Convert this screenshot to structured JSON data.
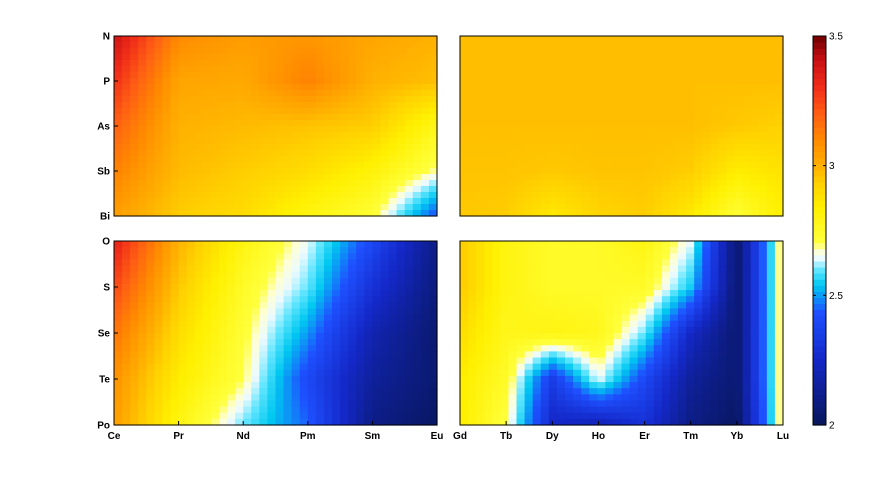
{
  "chart_data": [
    {
      "type": "heatmap",
      "x_categories": [
        "Ce",
        "Pr",
        "Nd",
        "Pm",
        "Sm",
        "Eu"
      ],
      "y_categories": [
        "N",
        "P",
        "As",
        "Sb",
        "Bi"
      ],
      "values": [
        [
          3.4,
          3.1,
          3.05,
          3.07,
          3.03,
          3.0
        ],
        [
          3.3,
          3.03,
          3.02,
          3.12,
          3.0,
          2.97
        ],
        [
          3.2,
          3.0,
          2.98,
          2.96,
          2.94,
          2.78
        ],
        [
          3.12,
          2.98,
          2.94,
          2.9,
          2.82,
          2.68
        ],
        [
          3.05,
          2.94,
          2.9,
          2.8,
          2.72,
          2.42
        ]
      ]
    },
    {
      "type": "heatmap",
      "x_categories": [
        "Gd",
        "Tb",
        "Dy",
        "Ho",
        "Er",
        "Tm",
        "Yb",
        "Lu"
      ],
      "y_categories": [
        "N",
        "P",
        "As",
        "Sb",
        "Bi"
      ],
      "values": [
        [
          2.97,
          2.97,
          2.97,
          2.97,
          2.97,
          2.97,
          2.97,
          2.97
        ],
        [
          2.97,
          2.97,
          2.97,
          2.97,
          2.97,
          2.97,
          2.97,
          2.97
        ],
        [
          2.97,
          2.97,
          2.97,
          2.97,
          2.97,
          2.97,
          2.95,
          2.93
        ],
        [
          2.96,
          2.96,
          2.95,
          2.96,
          2.96,
          2.94,
          2.85,
          2.88
        ],
        [
          2.95,
          2.94,
          2.86,
          2.92,
          2.94,
          2.86,
          2.72,
          2.84
        ]
      ]
    },
    {
      "type": "heatmap",
      "x_categories": [
        "Ce",
        "Pr",
        "Nd",
        "Pm",
        "Sm",
        "Eu"
      ],
      "y_categories": [
        "O",
        "S",
        "Se",
        "Te",
        "Po"
      ],
      "values": [
        [
          3.35,
          3.0,
          2.8,
          2.65,
          2.4,
          2.1
        ],
        [
          3.25,
          2.95,
          2.75,
          2.6,
          2.3,
          2.08
        ],
        [
          3.15,
          2.9,
          2.72,
          2.5,
          2.2,
          2.05
        ],
        [
          3.08,
          2.85,
          2.7,
          2.4,
          2.15,
          2.05
        ],
        [
          3.05,
          2.8,
          2.6,
          2.45,
          2.1,
          2.02
        ]
      ]
    },
    {
      "type": "heatmap",
      "x_categories": [
        "Gd",
        "Tb",
        "Dy",
        "Ho",
        "Er",
        "Tm",
        "Yb",
        "Lu"
      ],
      "y_categories": [
        "O",
        "S",
        "Se",
        "Te",
        "Po"
      ],
      "values": [
        [
          2.95,
          2.8,
          2.75,
          2.75,
          2.8,
          2.65,
          2.05,
          2.75
        ],
        [
          2.95,
          2.8,
          2.75,
          2.75,
          2.75,
          2.55,
          2.05,
          2.75
        ],
        [
          2.9,
          2.78,
          2.8,
          2.78,
          2.6,
          2.25,
          2.05,
          2.75
        ],
        [
          2.85,
          2.75,
          2.35,
          2.65,
          2.4,
          2.15,
          2.05,
          2.75
        ],
        [
          2.85,
          2.7,
          2.25,
          2.2,
          2.3,
          2.1,
          2.02,
          2.75
        ]
      ]
    }
  ],
  "colorbar": {
    "min": 2,
    "max": 3.5,
    "tick_labels": [
      "2",
      "2.5",
      "3",
      "3.5"
    ],
    "tick_values": [
      2,
      2.5,
      3,
      3.5
    ],
    "colormap": "jet-like (dark blue - blue - cyan - white - yellow - orange - red - dark red)"
  },
  "grid": false,
  "legend": "colorbar at right"
}
